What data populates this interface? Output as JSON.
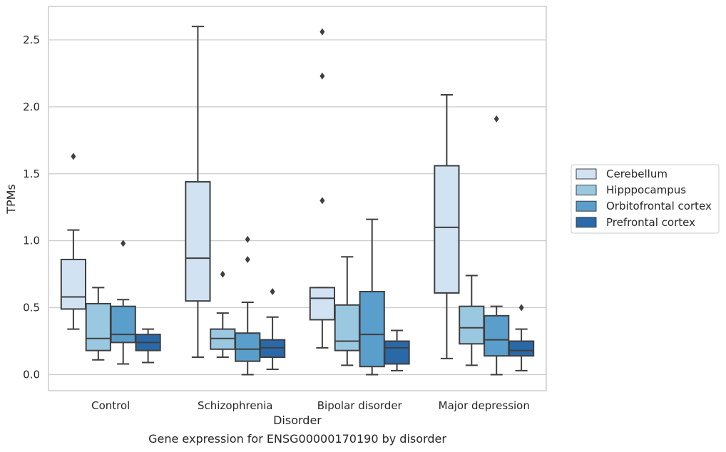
{
  "chart_data": {
    "type": "box",
    "caption": "Gene expression for ENSG00000170190 by disorder",
    "xlabel": "Disorder",
    "ylabel": "TPMs",
    "ylim": [
      -0.12,
      2.75
    ],
    "yticks": [
      0.0,
      0.5,
      1.0,
      1.5,
      2.0,
      2.5
    ],
    "ytick_labels": [
      "0.0",
      "0.5",
      "1.0",
      "1.5",
      "2.0",
      "2.5"
    ],
    "grid": "horizontal",
    "legend_position": "right",
    "categories": [
      "Control",
      "Schizophrenia",
      "Bipolar disorder",
      "Major depression"
    ],
    "series": [
      {
        "name": "Cerebellum",
        "color": "#d1e2f2",
        "boxes": [
          {
            "whisker_low": 0.34,
            "q1": 0.49,
            "median": 0.58,
            "q3": 0.86,
            "whisker_high": 1.08,
            "outliers": [
              1.63
            ]
          },
          {
            "whisker_low": 0.13,
            "q1": 0.55,
            "median": 0.87,
            "q3": 1.44,
            "whisker_high": 2.6,
            "outliers": []
          },
          {
            "whisker_low": 0.2,
            "q1": 0.41,
            "median": 0.57,
            "q3": 0.65,
            "whisker_high": 0.65,
            "outliers": [
              1.3,
              2.23,
              2.56
            ]
          },
          {
            "whisker_low": 0.12,
            "q1": 0.61,
            "median": 1.1,
            "q3": 1.56,
            "whisker_high": 2.09,
            "outliers": []
          }
        ]
      },
      {
        "name": "Hipppocampus",
        "color": "#9ac8e0",
        "boxes": [
          {
            "whisker_low": 0.11,
            "q1": 0.18,
            "median": 0.27,
            "q3": 0.53,
            "whisker_high": 0.65,
            "outliers": []
          },
          {
            "whisker_low": 0.13,
            "q1": 0.19,
            "median": 0.27,
            "q3": 0.34,
            "whisker_high": 0.46,
            "outliers": [
              0.75
            ]
          },
          {
            "whisker_low": 0.07,
            "q1": 0.18,
            "median": 0.25,
            "q3": 0.52,
            "whisker_high": 0.88,
            "outliers": []
          },
          {
            "whisker_low": 0.07,
            "q1": 0.23,
            "median": 0.35,
            "q3": 0.51,
            "whisker_high": 0.74,
            "outliers": []
          }
        ]
      },
      {
        "name": "Orbitofrontal cortex",
        "color": "#5a9ecb",
        "boxes": [
          {
            "whisker_low": 0.08,
            "q1": 0.24,
            "median": 0.3,
            "q3": 0.51,
            "whisker_high": 0.56,
            "outliers": [
              0.98
            ]
          },
          {
            "whisker_low": 0.0,
            "q1": 0.1,
            "median": 0.19,
            "q3": 0.31,
            "whisker_high": 0.54,
            "outliers": [
              0.86,
              1.01
            ]
          },
          {
            "whisker_low": 0.0,
            "q1": 0.06,
            "median": 0.3,
            "q3": 0.62,
            "whisker_high": 1.16,
            "outliers": []
          },
          {
            "whisker_low": 0.0,
            "q1": 0.14,
            "median": 0.26,
            "q3": 0.44,
            "whisker_high": 0.51,
            "outliers": [
              1.91
            ]
          }
        ]
      },
      {
        "name": "Prefrontal cortex",
        "color": "#2a69a8",
        "boxes": [
          {
            "whisker_low": 0.09,
            "q1": 0.18,
            "median": 0.24,
            "q3": 0.3,
            "whisker_high": 0.34,
            "outliers": []
          },
          {
            "whisker_low": 0.04,
            "q1": 0.13,
            "median": 0.2,
            "q3": 0.26,
            "whisker_high": 0.43,
            "outliers": [
              0.62
            ]
          },
          {
            "whisker_low": 0.03,
            "q1": 0.08,
            "median": 0.2,
            "q3": 0.25,
            "whisker_high": 0.33,
            "outliers": []
          },
          {
            "whisker_low": 0.03,
            "q1": 0.14,
            "median": 0.18,
            "q3": 0.25,
            "whisker_high": 0.34,
            "outliers": [
              0.5
            ]
          }
        ]
      }
    ]
  }
}
